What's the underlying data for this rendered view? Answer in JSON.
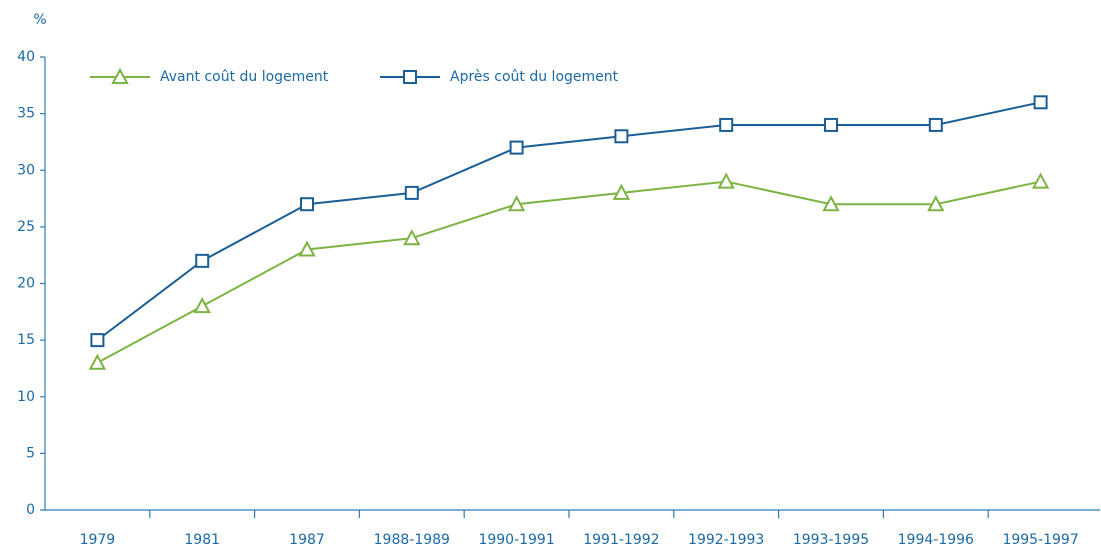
{
  "chart_data": {
    "type": "line",
    "y_label": "%",
    "categories": [
      "1979",
      "1981",
      "1987",
      "1988-1989",
      "1990-1991",
      "1991-1992",
      "1992-1993",
      "1993-1995",
      "1994-1996",
      "1995-1997"
    ],
    "series": [
      {
        "name": "Avant coût du logement",
        "color": "#7cb342",
        "marker": "triangle",
        "values": [
          13,
          18,
          23,
          24,
          27,
          28,
          29,
          27,
          27,
          29
        ]
      },
      {
        "name": "Après coût du logement",
        "color": "#1b5e96",
        "marker": "square",
        "values": [
          15,
          22,
          27,
          28,
          32,
          33,
          34,
          34,
          34,
          36
        ]
      }
    ],
    "ylim": [
      0,
      40
    ],
    "yticks": [
      0,
      5,
      10,
      15,
      20,
      25,
      30,
      35,
      40
    ],
    "grid": false
  }
}
